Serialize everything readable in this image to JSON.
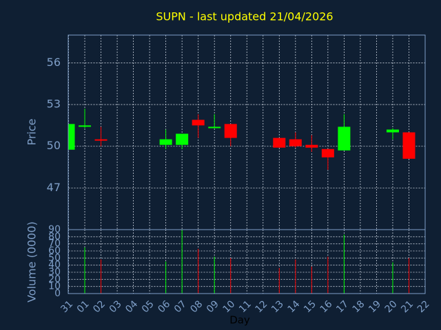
{
  "chart_data": {
    "type": "candlestick",
    "title": "SUPN - last updated 21/04/2026",
    "y_label": "Price",
    "volume_label": "Volume (0000)",
    "x_label": "Day",
    "categories": [
      "31",
      "01",
      "02",
      "03",
      "04",
      "05",
      "06",
      "07",
      "08",
      "09",
      "10",
      "11",
      "12",
      "13",
      "14",
      "15",
      "16",
      "17",
      "18",
      "19",
      "20",
      "21",
      "22"
    ],
    "open": [
      49.75,
      51.4,
      50.5,
      null,
      null,
      null,
      50.1,
      50.1,
      51.9,
      51.3,
      51.6,
      null,
      null,
      50.6,
      50.5,
      50.1,
      49.8,
      49.7,
      null,
      null,
      51.0,
      51.0,
      null
    ],
    "high": [
      51.6,
      52.7,
      51.4,
      null,
      null,
      null,
      51.2,
      50.9,
      52.3,
      52.3,
      51.6,
      null,
      null,
      50.6,
      51.0,
      50.8,
      49.8,
      52.3,
      null,
      null,
      51.3,
      51.0,
      null
    ],
    "low": [
      49.75,
      51.3,
      50.0,
      null,
      null,
      null,
      49.8,
      49.8,
      50.6,
      51.3,
      50.0,
      null,
      null,
      49.9,
      49.9,
      49.6,
      48.3,
      49.7,
      null,
      null,
      50.5,
      49.1,
      null
    ],
    "close": [
      51.6,
      51.5,
      50.4,
      null,
      null,
      null,
      50.5,
      50.9,
      51.5,
      51.4,
      50.6,
      null,
      null,
      49.9,
      50.0,
      49.9,
      49.2,
      51.4,
      null,
      null,
      51.2,
      49.1,
      null
    ],
    "volume": [
      null,
      65,
      48,
      null,
      null,
      null,
      45,
      90,
      63,
      52,
      50,
      null,
      null,
      36,
      48,
      38,
      52,
      83,
      null,
      null,
      44,
      50,
      null
    ],
    "ylim": [
      44,
      58
    ],
    "yticks": [
      47,
      50,
      53,
      56
    ],
    "volume_ylim": [
      0,
      90
    ],
    "volume_yticks": [
      0,
      10,
      20,
      30,
      40,
      50,
      60,
      70,
      80,
      90
    ],
    "up_color": "#00ff00",
    "down_color": "#ff0000",
    "grid": true
  }
}
